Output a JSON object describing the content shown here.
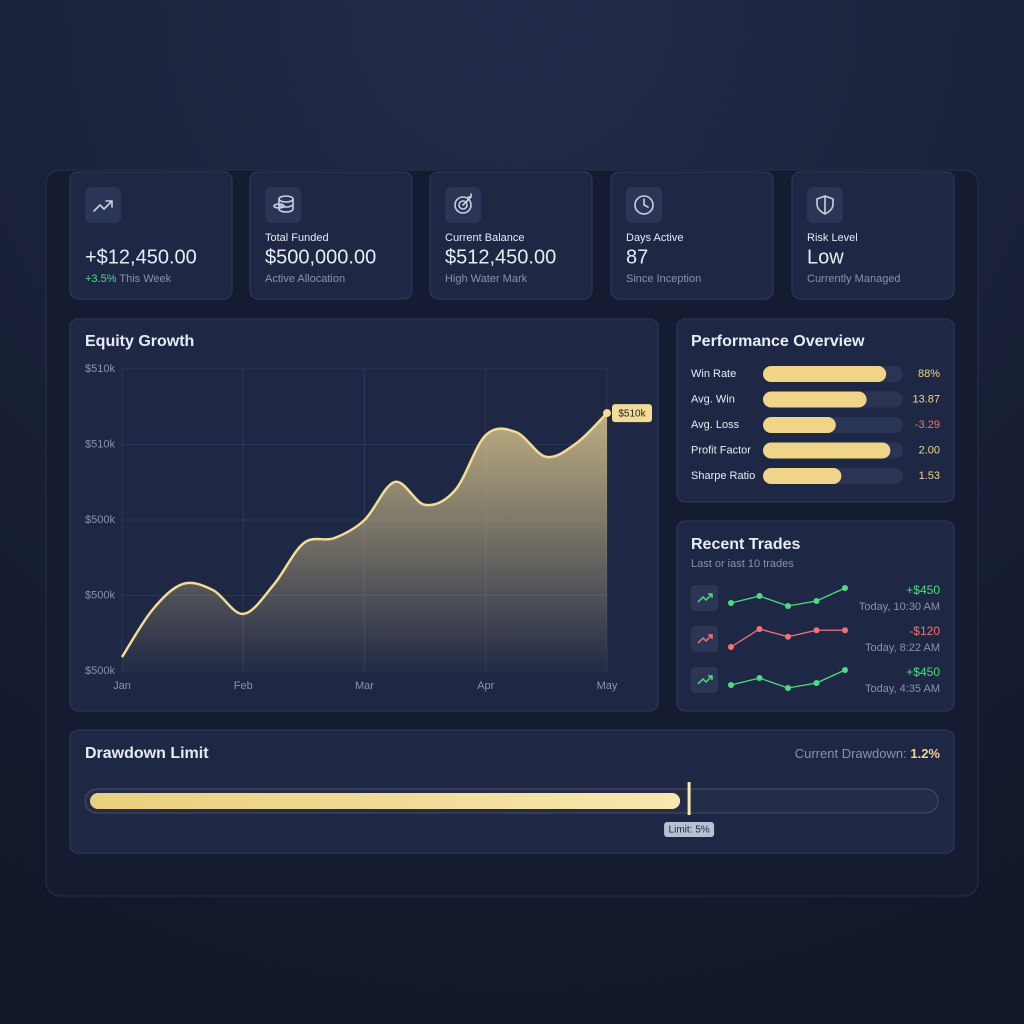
{
  "stats": [
    {
      "label": null,
      "value": "+$12,450.00",
      "sub_highlight": "+3.5%",
      "sub": "This Week"
    },
    {
      "label": "Total Funded",
      "value": "$500,000.00",
      "sub_highlight": null,
      "sub": "Active Allocation"
    },
    {
      "label": "Current Balance",
      "value": "$512,450.00",
      "sub_highlight": null,
      "sub": "High Water Mark"
    },
    {
      "label": "Days Active",
      "value": "87",
      "sub_highlight": null,
      "sub": "Since Inception"
    },
    {
      "label": "Risk Level",
      "value": "Low",
      "sub_highlight": null,
      "sub": "Currently Managed"
    }
  ],
  "chart_data": {
    "type": "area",
    "title": "Equity Growth",
    "categories": [
      "Jan",
      null,
      null,
      null,
      "Feb",
      null,
      null,
      null,
      "Mar",
      null,
      null,
      null,
      "Apr",
      null,
      null,
      null,
      "May"
    ],
    "values": [
      500460,
      502020,
      502880,
      502680,
      501890,
      502850,
      504240,
      504400,
      505000,
      506260,
      505500,
      506000,
      507810,
      507910,
      507090,
      507550,
      508540
    ],
    "color": "#f3dc95",
    "ylim": [
      500000,
      510000
    ],
    "yticks": [
      {
        "value": 500000,
        "label": "$500k"
      },
      {
        "value": 502500,
        "label": "$500k"
      },
      {
        "value": 505000,
        "label": "$500k"
      },
      {
        "value": 507500,
        "label": "$510k"
      },
      {
        "value": 510000,
        "label": "$510k"
      }
    ],
    "grid": true,
    "annotation": "$510k"
  },
  "performance": {
    "title": "Performance Overview",
    "color": "#f0d588",
    "rows": [
      {
        "label": "Win Rate",
        "value": "88%",
        "fill": 88,
        "value_color": "#f0d588"
      },
      {
        "label": "Avg. Win",
        "value": "13.87",
        "fill": 74,
        "value_color": "#f0d588"
      },
      {
        "label": "Avg. Loss",
        "value": "-3.29",
        "fill": 52,
        "value_color": "#f87171"
      },
      {
        "label": "Profit Factor",
        "value": "2.00",
        "fill": 91,
        "value_color": "#f0d588"
      },
      {
        "label": "Sharpe Ratio",
        "value": "1.53",
        "fill": 56,
        "value_color": "#f0d588"
      }
    ]
  },
  "trades": {
    "title": "Recent Trades",
    "subtitle": "Last or iast 10 trades",
    "rows": [
      {
        "amount": "+$450",
        "time": "Today, 10:30 AM",
        "color": "#4ade80",
        "spark": [
          3,
          10,
          0,
          5,
          18
        ]
      },
      {
        "amount": "-$120",
        "time": "Today, 8:22 AM",
        "color": "#f87171",
        "spark": [
          0,
          14,
          8,
          13,
          13
        ]
      },
      {
        "amount": "+$450",
        "time": "Today, 4:35 AM",
        "color": "#4ade80",
        "spark": [
          3,
          10,
          0,
          5,
          18
        ]
      }
    ]
  },
  "drawdown": {
    "title": "Drawdown Limit",
    "current_label": "Current Drawdown:",
    "current": "1.2%",
    "limit": "Limit: 5%",
    "fill": 70
  }
}
